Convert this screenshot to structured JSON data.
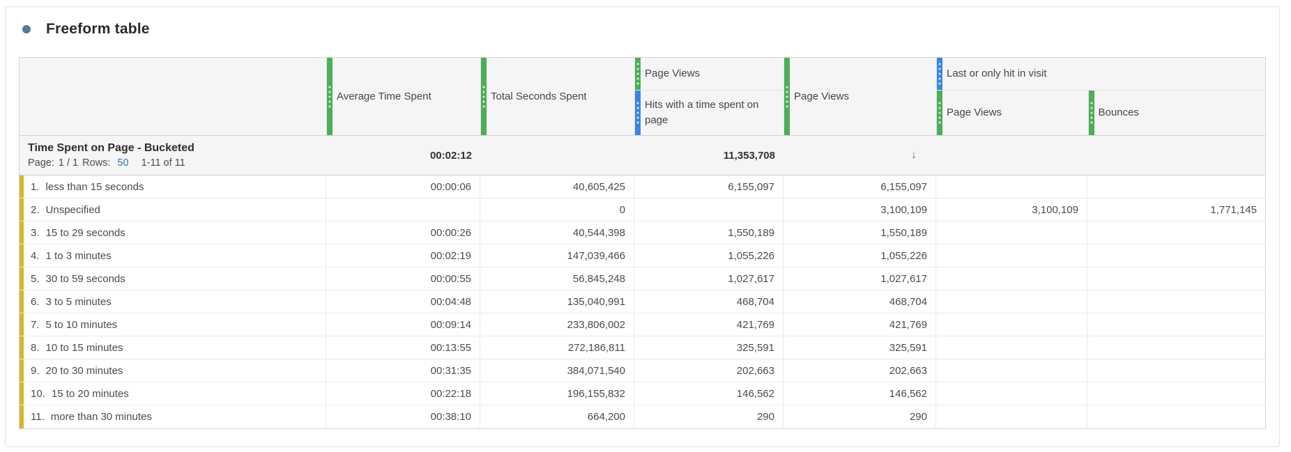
{
  "title": "Freeform table",
  "colors": {
    "green": "#4cae58",
    "blue": "#3b86e2",
    "yellow": "#d7b62c",
    "bullet": "#4e7ca0",
    "link": "#2d73c8"
  },
  "header": {
    "avg_time": "Average Time Spent",
    "total_seconds": "Total Seconds Spent",
    "pv_hits_top": "Page Views",
    "pv_hits_bottom": "Hits with a time spent on page",
    "page_views": "Page Views",
    "group_label": "Last or only hit in visit",
    "group_pv": "Page Views",
    "group_bounces": "Bounces"
  },
  "summary": {
    "dimension": "Time Spent on Page - Bucketed",
    "page_label": "Page:",
    "page_value": "1 / 1",
    "rows_label": "Rows:",
    "rows_value": "50",
    "range": "1-11 of 11",
    "total_avg_time": "00:02:12",
    "total_hits": "11,353,708",
    "sort_indicator": "↓"
  },
  "table": {
    "rows": [
      {
        "num": "1.",
        "label": "less than 15 seconds",
        "avg_time": "00:00:06",
        "total_seconds": "40,605,425",
        "hits": "6,155,097",
        "page_views": "6,155,097",
        "lh_page_views": "",
        "bounces": ""
      },
      {
        "num": "2.",
        "label": "Unspecified",
        "avg_time": "",
        "total_seconds": "0",
        "hits": "",
        "page_views": "3,100,109",
        "lh_page_views": "3,100,109",
        "bounces": "1,771,145"
      },
      {
        "num": "3.",
        "label": "15 to 29 seconds",
        "avg_time": "00:00:26",
        "total_seconds": "40,544,398",
        "hits": "1,550,189",
        "page_views": "1,550,189",
        "lh_page_views": "",
        "bounces": ""
      },
      {
        "num": "4.",
        "label": "1 to 3 minutes",
        "avg_time": "00:02:19",
        "total_seconds": "147,039,466",
        "hits": "1,055,226",
        "page_views": "1,055,226",
        "lh_page_views": "",
        "bounces": ""
      },
      {
        "num": "5.",
        "label": "30 to 59 seconds",
        "avg_time": "00:00:55",
        "total_seconds": "56,845,248",
        "hits": "1,027,617",
        "page_views": "1,027,617",
        "lh_page_views": "",
        "bounces": ""
      },
      {
        "num": "6.",
        "label": "3 to 5 minutes",
        "avg_time": "00:04:48",
        "total_seconds": "135,040,991",
        "hits": "468,704",
        "page_views": "468,704",
        "lh_page_views": "",
        "bounces": ""
      },
      {
        "num": "7.",
        "label": "5 to 10 minutes",
        "avg_time": "00:09:14",
        "total_seconds": "233,806,002",
        "hits": "421,769",
        "page_views": "421,769",
        "lh_page_views": "",
        "bounces": ""
      },
      {
        "num": "8.",
        "label": "10 to 15 minutes",
        "avg_time": "00:13:55",
        "total_seconds": "272,186,811",
        "hits": "325,591",
        "page_views": "325,591",
        "lh_page_views": "",
        "bounces": ""
      },
      {
        "num": "9.",
        "label": "20 to 30 minutes",
        "avg_time": "00:31:35",
        "total_seconds": "384,071,540",
        "hits": "202,663",
        "page_views": "202,663",
        "lh_page_views": "",
        "bounces": ""
      },
      {
        "num": "10.",
        "label": "15 to 20 minutes",
        "avg_time": "00:22:18",
        "total_seconds": "196,155,832",
        "hits": "146,562",
        "page_views": "146,562",
        "lh_page_views": "",
        "bounces": ""
      },
      {
        "num": "11.",
        "label": "more than 30 minutes",
        "avg_time": "00:38:10",
        "total_seconds": "664,200",
        "hits": "290",
        "page_views": "290",
        "lh_page_views": "",
        "bounces": ""
      }
    ]
  }
}
